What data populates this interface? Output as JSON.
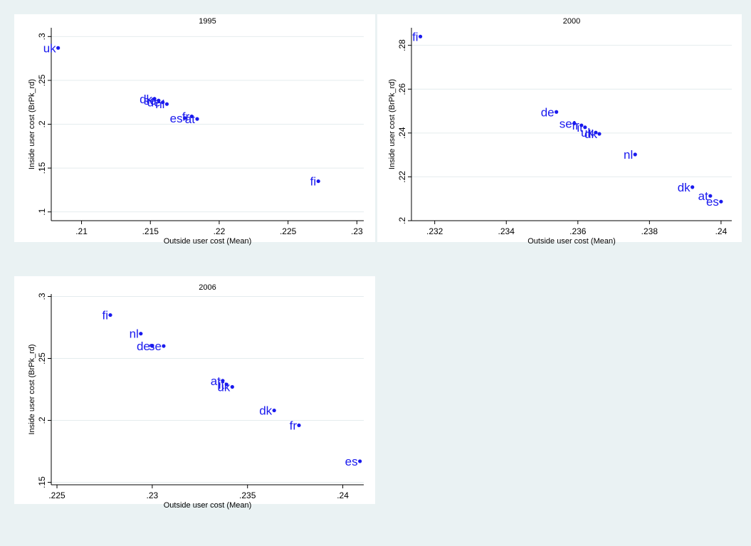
{
  "colors": {
    "background": "#eaf2f3",
    "plot_background": "#ffffff",
    "marker": "#1a1aee",
    "grid": "#e4ecee"
  },
  "chart_data": [
    {
      "type": "scatter",
      "title": "1995",
      "xlabel": "Outside user cost (Mean)",
      "ylabel": "Inside user cost (BrPk_rd)",
      "xlim": [
        0.2078,
        0.2305
      ],
      "ylim": [
        0.09,
        0.31
      ],
      "xticks": [
        0.21,
        0.215,
        0.22,
        0.225,
        0.23
      ],
      "xtick_labels": [
        ".21",
        ".215",
        ".22",
        ".225",
        ".23"
      ],
      "yticks": [
        0.1,
        0.15,
        0.2,
        0.25,
        0.3
      ],
      "ytick_labels": [
        ".1",
        ".15",
        ".2",
        ".25",
        ".3"
      ],
      "grid": true,
      "points": [
        {
          "label": "uk",
          "x": 0.2083,
          "y": 0.287
        },
        {
          "label": "dk",
          "x": 0.2153,
          "y": 0.229
        },
        {
          "label": "se",
          "x": 0.2156,
          "y": 0.227
        },
        {
          "label": "de",
          "x": 0.2159,
          "y": 0.225
        },
        {
          "label": "nl",
          "x": 0.2162,
          "y": 0.223
        },
        {
          "label": "es",
          "x": 0.2175,
          "y": 0.207
        },
        {
          "label": "fr",
          "x": 0.218,
          "y": 0.209
        },
        {
          "label": "at",
          "x": 0.2184,
          "y": 0.206
        },
        {
          "label": "fi",
          "x": 0.2272,
          "y": 0.135
        }
      ]
    },
    {
      "type": "scatter",
      "title": "2000",
      "xlabel": "Outside user cost (Mean)",
      "ylabel": "Inside user cost (BrPk_rd)",
      "xlim": [
        0.23135,
        0.2403
      ],
      "ylim": [
        0.2,
        0.288
      ],
      "xticks": [
        0.232,
        0.234,
        0.236,
        0.238,
        0.24
      ],
      "xtick_labels": [
        ".232",
        ".234",
        ".236",
        ".238",
        ".24"
      ],
      "yticks": [
        0.2,
        0.22,
        0.24,
        0.26,
        0.28
      ],
      "ytick_labels": [
        ".2",
        ".22",
        ".24",
        ".26",
        ".28"
      ],
      "grid": true,
      "points": [
        {
          "label": "fi",
          "x": 0.2316,
          "y": 0.284
        },
        {
          "label": "de",
          "x": 0.2354,
          "y": 0.2496
        },
        {
          "label": "se",
          "x": 0.2359,
          "y": 0.2444
        },
        {
          "label": "fr",
          "x": 0.2361,
          "y": 0.2435
        },
        {
          "label": "it",
          "x": 0.2362,
          "y": 0.2426
        },
        {
          "label": "uk",
          "x": 0.2365,
          "y": 0.2402
        },
        {
          "label": "dk",
          "x": 0.2366,
          "y": 0.2396
        },
        {
          "label": "nl",
          "x": 0.2376,
          "y": 0.2302
        },
        {
          "label": "dk",
          "x": 0.2392,
          "y": 0.2153
        },
        {
          "label": "at",
          "x": 0.2397,
          "y": 0.2113
        },
        {
          "label": "es",
          "x": 0.24,
          "y": 0.2087
        }
      ]
    },
    {
      "type": "scatter",
      "title": "2006",
      "xlabel": "Outside user cost (Mean)",
      "ylabel": "Inside user cost (BrPk_rd)",
      "xlim": [
        0.2247,
        0.2411
      ],
      "ylim": [
        0.148,
        0.302
      ],
      "xticks": [
        0.225,
        0.23,
        0.235,
        0.24
      ],
      "xtick_labels": [
        ".225",
        ".23",
        ".235",
        ".24"
      ],
      "yticks": [
        0.15,
        0.2,
        0.25,
        0.3
      ],
      "ytick_labels": [
        ".15",
        ".2",
        ".25",
        ".3"
      ],
      "grid": true,
      "points": [
        {
          "label": "fi",
          "x": 0.2278,
          "y": 0.285
        },
        {
          "label": "nl",
          "x": 0.2294,
          "y": 0.27
        },
        {
          "label": "de",
          "x": 0.23,
          "y": 0.26
        },
        {
          "label": "se",
          "x": 0.2306,
          "y": 0.26
        },
        {
          "label": "at",
          "x": 0.2337,
          "y": 0.232
        },
        {
          "label": "it",
          "x": 0.2339,
          "y": 0.229
        },
        {
          "label": "uk",
          "x": 0.2342,
          "y": 0.227
        },
        {
          "label": "dk",
          "x": 0.2364,
          "y": 0.208
        },
        {
          "label": "fr",
          "x": 0.2377,
          "y": 0.196
        },
        {
          "label": "es",
          "x": 0.2409,
          "y": 0.167
        }
      ]
    }
  ]
}
